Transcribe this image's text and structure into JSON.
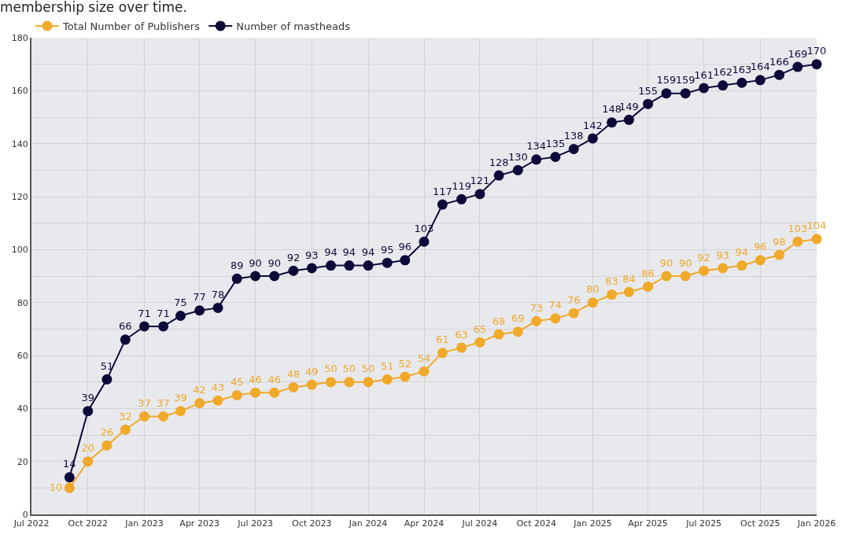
{
  "chart_data": {
    "type": "line",
    "title": "membership size over time.",
    "x": [
      "2022-09",
      "2022-10",
      "2022-11",
      "2022-12",
      "2023-01",
      "2023-02",
      "2023-03",
      "2023-04",
      "2023-05",
      "2023-06",
      "2023-07",
      "2023-08",
      "2023-09",
      "2023-10",
      "2023-11",
      "2023-12",
      "2024-01",
      "2024-02",
      "2024-03",
      "2024-04",
      "2024-05",
      "2024-06",
      "2024-07",
      "2024-08",
      "2024-09",
      "2024-10",
      "2024-11",
      "2024-12",
      "2025-01",
      "2025-02",
      "2025-03",
      "2025-04",
      "2025-05",
      "2025-06",
      "2025-07",
      "2025-08",
      "2025-09",
      "2025-10",
      "2025-11",
      "2025-12",
      "2026-01"
    ],
    "series": [
      {
        "name": "Total Number of Publishers",
        "color": "#f0a928",
        "values": [
          10,
          20,
          26,
          32,
          37,
          37,
          39,
          42,
          43,
          45,
          46,
          46,
          48,
          49,
          50,
          50,
          50,
          51,
          52,
          54,
          61,
          63,
          65,
          68,
          69,
          73,
          74,
          76,
          80,
          83,
          84,
          86,
          90,
          90,
          92,
          93,
          94,
          96,
          98,
          103,
          104
        ]
      },
      {
        "name": "Number of mastheads",
        "color": "#0d0a3a",
        "values": [
          14,
          39,
          51,
          66,
          71,
          71,
          75,
          77,
          78,
          89,
          90,
          90,
          92,
          93,
          94,
          94,
          94,
          95,
          96,
          103,
          117,
          119,
          121,
          128,
          130,
          134,
          135,
          138,
          142,
          148,
          149,
          155,
          159,
          159,
          161,
          162,
          163,
          164,
          166,
          169,
          170
        ]
      }
    ],
    "xlim": [
      "2022-07",
      "2026-01"
    ],
    "xticks": [
      {
        "value": "2022-07",
        "label": "Jul 2022"
      },
      {
        "value": "2022-10",
        "label": "Oct 2022"
      },
      {
        "value": "2023-01",
        "label": "Jan 2023"
      },
      {
        "value": "2023-04",
        "label": "Apr 2023"
      },
      {
        "value": "2023-07",
        "label": "Jul 2023"
      },
      {
        "value": "2023-10",
        "label": "Oct 2023"
      },
      {
        "value": "2024-01",
        "label": "Jan 2024"
      },
      {
        "value": "2024-04",
        "label": "Apr 2024"
      },
      {
        "value": "2024-07",
        "label": "Jul 2024"
      },
      {
        "value": "2024-10",
        "label": "Oct 2024"
      },
      {
        "value": "2025-01",
        "label": "Jan 2025"
      },
      {
        "value": "2025-04",
        "label": "Apr 2025"
      },
      {
        "value": "2025-07",
        "label": "Jul 2025"
      },
      {
        "value": "2025-10",
        "label": "Oct 2025"
      },
      {
        "value": "2026-01",
        "label": "Jan 2026"
      }
    ],
    "ylim": [
      0,
      180
    ],
    "yticks": [
      0,
      {
        "value": 10,
        "label": null
      },
      20,
      {
        "value": 30,
        "label": null
      },
      40,
      {
        "value": 50,
        "label": null
      },
      60,
      {
        "value": 70,
        "label": null
      },
      80,
      {
        "value": 90,
        "label": null
      },
      100,
      {
        "value": 110,
        "label": null
      },
      120,
      {
        "value": 130,
        "label": null
      },
      140,
      {
        "value": 150,
        "label": null
      },
      160,
      {
        "value": 170,
        "label": null
      },
      180
    ],
    "grid": true,
    "legend": "top left",
    "marker": "circle",
    "line_style": "solid",
    "data_labels": true
  }
}
